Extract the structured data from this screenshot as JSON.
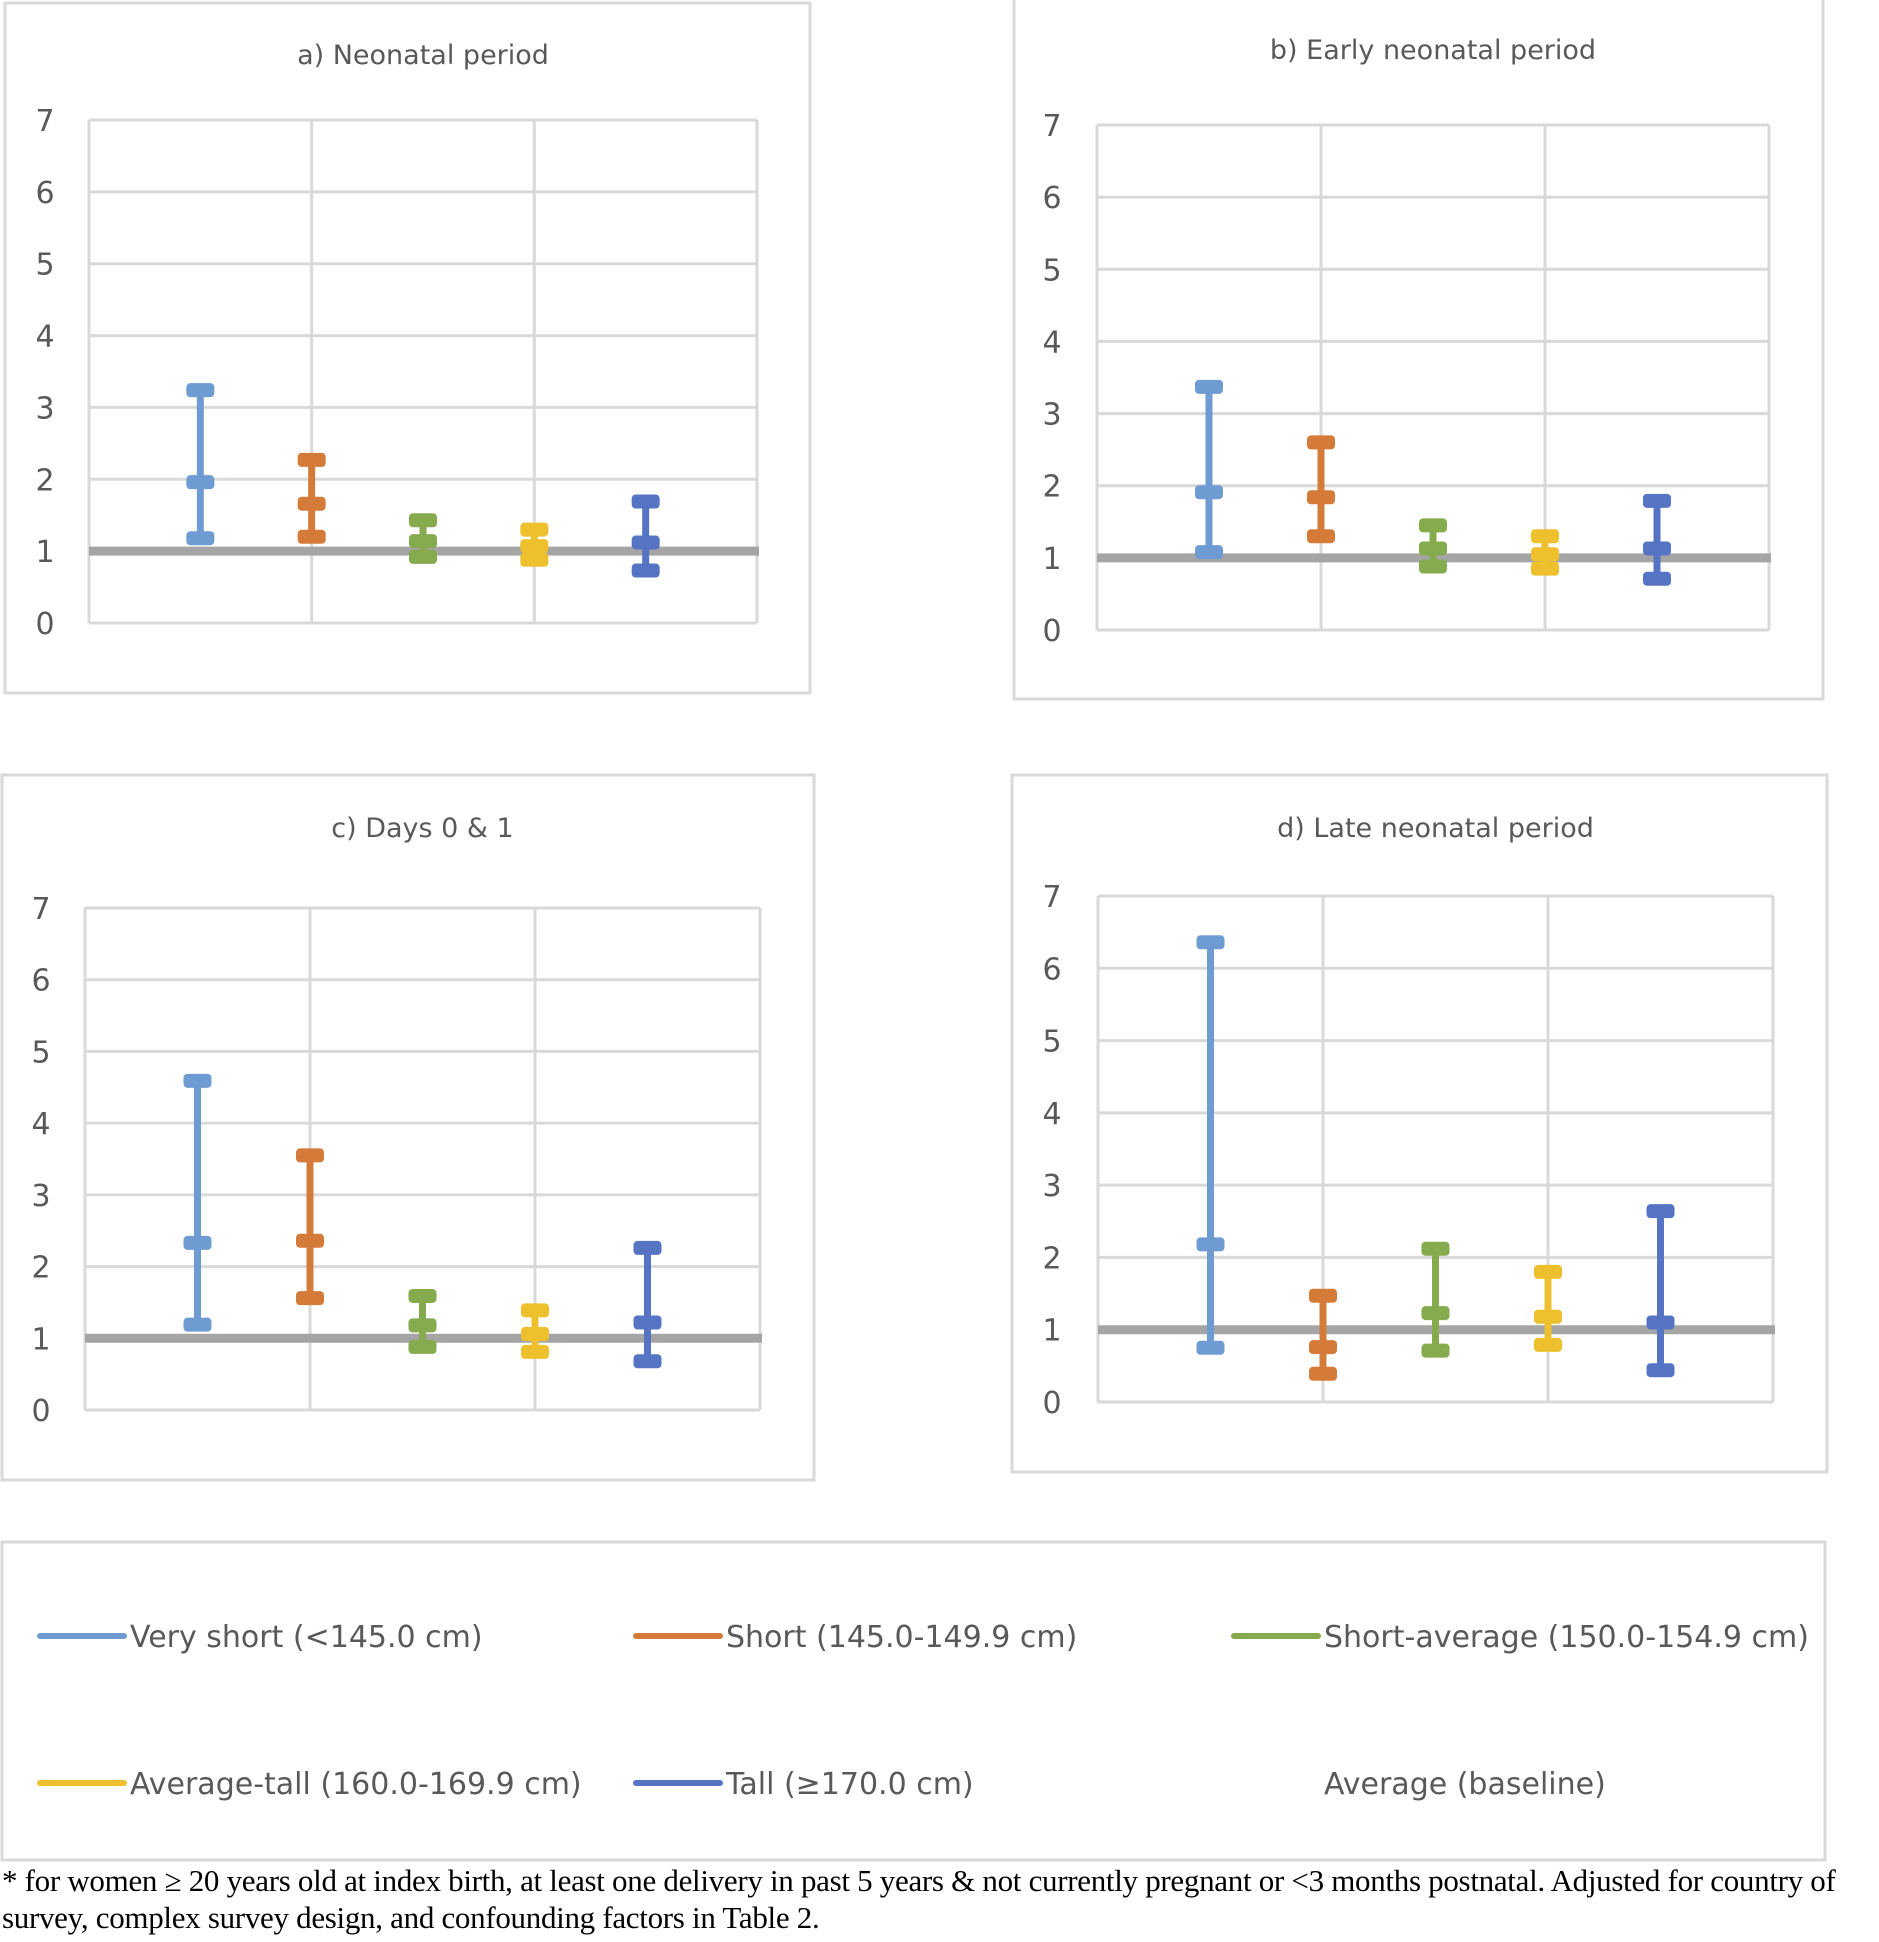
{
  "chart_data": {
    "type": "errorbar",
    "ylim": [
      0,
      7
    ],
    "yticks": [
      "0",
      "1",
      "2",
      "3",
      "4",
      "5",
      "6",
      "7"
    ],
    "grid": true,
    "baseline": {
      "name": "Average (baseline)",
      "value": 1,
      "color": "#A5A5A5"
    },
    "series": [
      {
        "name": "Very short (<145.0 cm)",
        "color": "#6F9BD3"
      },
      {
        "name": "Short (145.0-149.9 cm)",
        "color": "#D57B3A"
      },
      {
        "name": "Short-average (150.0-154.9 cm)",
        "color": "#86AA4E"
      },
      {
        "name": "Average-tall (160.0-169.9 cm)",
        "color": "#EFC02E"
      },
      {
        "name": "Tall (≥170.0 cm)",
        "color": "#5574C3"
      }
    ],
    "panels": [
      {
        "title": "a) Neonatal period",
        "points": [
          {
            "series": "Very short (<145.0 cm)",
            "lower": 1.18,
            "estimate": 1.96,
            "upper": 3.24
          },
          {
            "series": "Short (145.0-149.9 cm)",
            "lower": 1.2,
            "estimate": 1.66,
            "upper": 2.27
          },
          {
            "series": "Short-average (150.0-154.9 cm)",
            "lower": 0.92,
            "estimate": 1.14,
            "upper": 1.43
          },
          {
            "series": "Average-tall (160.0-169.9 cm)",
            "lower": 0.88,
            "estimate": 1.07,
            "upper": 1.3
          },
          {
            "series": "Tall (≥170.0 cm)",
            "lower": 0.73,
            "estimate": 1.12,
            "upper": 1.69
          }
        ]
      },
      {
        "title": "b) Early neonatal period",
        "points": [
          {
            "series": "Very short (<145.0 cm)",
            "lower": 1.08,
            "estimate": 1.91,
            "upper": 3.37
          },
          {
            "series": "Short (145.0-149.9 cm)",
            "lower": 1.3,
            "estimate": 1.84,
            "upper": 2.6
          },
          {
            "series": "Short-average (150.0-154.9 cm)",
            "lower": 0.88,
            "estimate": 1.13,
            "upper": 1.45
          },
          {
            "series": "Average-tall (160.0-169.9 cm)",
            "lower": 0.85,
            "estimate": 1.05,
            "upper": 1.3
          },
          {
            "series": "Tall (≥170.0 cm)",
            "lower": 0.71,
            "estimate": 1.13,
            "upper": 1.79
          }
        ]
      },
      {
        "title": "c) Days 0 & 1",
        "points": [
          {
            "series": "Very short (<145.0 cm)",
            "lower": 1.19,
            "estimate": 2.33,
            "upper": 4.59
          },
          {
            "series": "Short (145.0-149.9 cm)",
            "lower": 1.56,
            "estimate": 2.36,
            "upper": 3.55
          },
          {
            "series": "Short-average (150.0-154.9 cm)",
            "lower": 0.88,
            "estimate": 1.18,
            "upper": 1.59
          },
          {
            "series": "Average-tall (160.0-169.9 cm)",
            "lower": 0.81,
            "estimate": 1.06,
            "upper": 1.39
          },
          {
            "series": "Tall (≥170.0 cm)",
            "lower": 0.68,
            "estimate": 1.22,
            "upper": 2.26
          }
        ]
      },
      {
        "title": "d) Late neonatal period",
        "points": [
          {
            "series": "Very short (<145.0 cm)",
            "lower": 0.75,
            "estimate": 2.18,
            "upper": 6.36
          },
          {
            "series": "Short (145.0-149.9 cm)",
            "lower": 0.39,
            "estimate": 0.76,
            "upper": 1.47
          },
          {
            "series": "Short-average (150.0-154.9 cm)",
            "lower": 0.71,
            "estimate": 1.23,
            "upper": 2.12
          },
          {
            "series": "Average-tall (160.0-169.9 cm)",
            "lower": 0.79,
            "estimate": 1.18,
            "upper": 1.8
          },
          {
            "series": "Tall (≥170.0 cm)",
            "lower": 0.44,
            "estimate": 1.1,
            "upper": 2.64
          }
        ]
      }
    ],
    "legend": {
      "placement": "bottom",
      "entries": [
        "Very short (<145.0 cm)",
        "Short (145.0-149.9 cm)",
        "Short-average (150.0-154.9 cm)",
        "Average-tall (160.0-169.9 cm)",
        "Tall (≥170.0 cm)",
        "Average (baseline)"
      ]
    },
    "footnote": "* for women ≥ 20 years old at index birth, at least one delivery in past 5 years & not currently pregnant or <3 months postnatal. Adjusted for country of survey, complex survey design, and confounding factors in Table 2."
  }
}
